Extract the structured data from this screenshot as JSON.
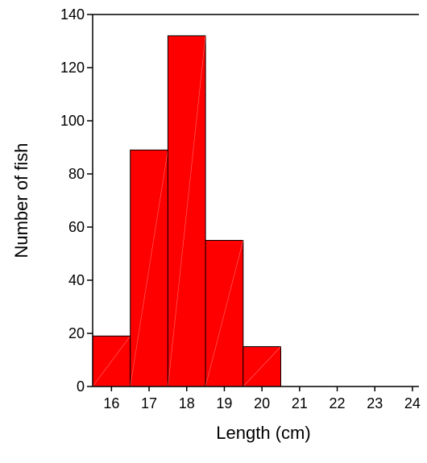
{
  "chart_data": {
    "type": "bar",
    "title": "",
    "xlabel": "Length (cm)",
    "ylabel": "Number of fish",
    "categories": [
      "16",
      "17",
      "18",
      "19",
      "20",
      "21",
      "22",
      "23",
      "24"
    ],
    "values": [
      19,
      89,
      132,
      55,
      15,
      0,
      0,
      0,
      0
    ],
    "ylim": [
      0,
      140
    ],
    "yticks": [
      "0",
      "20",
      "40",
      "60",
      "80",
      "100",
      "120",
      "140"
    ],
    "grid": false,
    "legend": "none",
    "bar_color": "#ff0000"
  }
}
